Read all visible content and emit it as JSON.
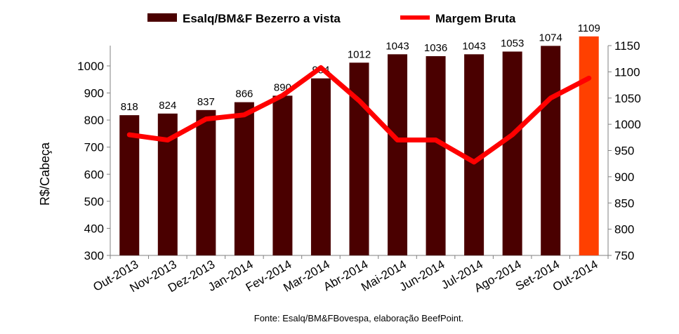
{
  "chart_data": {
    "type": "bar+line",
    "categories": [
      "Out-2013",
      "Nov-2013",
      "Dez-2013",
      "Jan-2014",
      "Fev-2014",
      "Mar-2014",
      "Abr-2014",
      "Mai-2014",
      "Jun-2014",
      "Jul-2014",
      "Ago-2014",
      "Set-2014",
      "Out-2014"
    ],
    "series": [
      {
        "name": "Esalq/BM&F Bezerro a vista",
        "type": "bar",
        "axis": "left",
        "values": [
          818,
          824,
          837,
          866,
          890,
          954,
          1012,
          1043,
          1036,
          1043,
          1053,
          1074,
          1109
        ],
        "labels": [
          "818",
          "824",
          "837",
          "866",
          "890",
          "954",
          "1012",
          "1043",
          "1036",
          "1043",
          "1053",
          "1074",
          "1109"
        ],
        "color": "#4a0000",
        "highlight_color": "#ff4000",
        "highlight_index": 12
      },
      {
        "name": "Margem Bruta",
        "type": "line",
        "axis": "right",
        "values": [
          980,
          970,
          1010,
          1018,
          1055,
          1108,
          1045,
          970,
          970,
          928,
          980,
          1050,
          1088
        ],
        "color": "#ff0000"
      }
    ],
    "ylabel": "R$/Cabeça",
    "ylim": [
      300,
      1075
    ],
    "yticks": [
      "300",
      "400",
      "500",
      "600",
      "700",
      "800",
      "900",
      "1000"
    ],
    "y2lim": [
      750,
      1150
    ],
    "y2ticks": [
      "750",
      "800",
      "850",
      "900",
      "950",
      "1000",
      "1050",
      "1100",
      "1150"
    ],
    "source": "Fonte: Esalq/BM&FBovespa, elaboração BeefPoint."
  }
}
